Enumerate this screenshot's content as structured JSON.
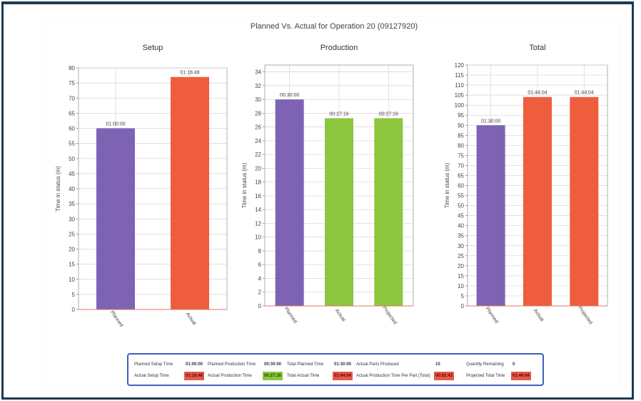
{
  "page_title": "Planned Vs. Actual for Operation 20 (09127920)",
  "colors": {
    "planned": "#7e63b4",
    "actual": "#ee5d3e",
    "projected": "#8cc63f",
    "frame": "#1e3a4f",
    "summary_border": "#3d5fbf"
  },
  "chart_data": [
    {
      "type": "bar",
      "title": "Setup",
      "ylabel": "Time in status (m)",
      "categories": [
        "Planned",
        "Actual"
      ],
      "values": [
        60,
        77
      ],
      "data_labels": [
        "01:00:00",
        "01:16:48"
      ],
      "bar_colors": [
        "#7e63b4",
        "#ee5d3e"
      ],
      "ylim": [
        0,
        80
      ],
      "ytick_step": 5,
      "grid": true
    },
    {
      "type": "bar",
      "title": "Production",
      "ylabel": "Time in status (m)",
      "categories": [
        "Planned",
        "Actual",
        "Projected"
      ],
      "values": [
        30,
        27.27,
        27.27
      ],
      "data_labels": [
        "00:30:00",
        "00:27:16",
        "00:27:16"
      ],
      "bar_colors": [
        "#7e63b4",
        "#8cc63f",
        "#8cc63f"
      ],
      "ylim": [
        0,
        35
      ],
      "ytick_step": 2,
      "grid": true
    },
    {
      "type": "bar",
      "title": "Total",
      "ylabel": "Time in status (m)",
      "categories": [
        "Planned",
        "Actual",
        "Projected"
      ],
      "values": [
        90,
        104.07,
        104.07
      ],
      "data_labels": [
        "01:30:00",
        "01:44:04",
        "01:44:04"
      ],
      "bar_colors": [
        "#7e63b4",
        "#ee5d3e",
        "#ee5d3e"
      ],
      "ylim": [
        0,
        120
      ],
      "ytick_step": 5,
      "grid": true
    }
  ],
  "summary": {
    "row1": [
      {
        "label": "Planned Setup Time",
        "value": "01:00:00",
        "highlight": ""
      },
      {
        "label": "Planned Production Time",
        "value": "00:30:00",
        "highlight": ""
      },
      {
        "label": "Total Planned Time",
        "value": "01:30:00",
        "highlight": ""
      },
      {
        "label": "Actual Parts Produced",
        "value": "10",
        "highlight": ""
      },
      {
        "label": "Quantity Remaining",
        "value": "0",
        "highlight": ""
      }
    ],
    "row2": [
      {
        "label": "Actual Setup Time",
        "value": "01:16:48",
        "highlight": "red"
      },
      {
        "label": "Actual Production Time",
        "value": "00:27:16",
        "highlight": "green"
      },
      {
        "label": "Total Actual Time",
        "value": "01:44:04",
        "highlight": "red"
      },
      {
        "label": "Actual Production Time Per Part (Total)",
        "value": "00:02:43",
        "highlight": "red"
      },
      {
        "label": "Projected Total Time",
        "value": "01:44:04",
        "highlight": "red"
      }
    ]
  }
}
